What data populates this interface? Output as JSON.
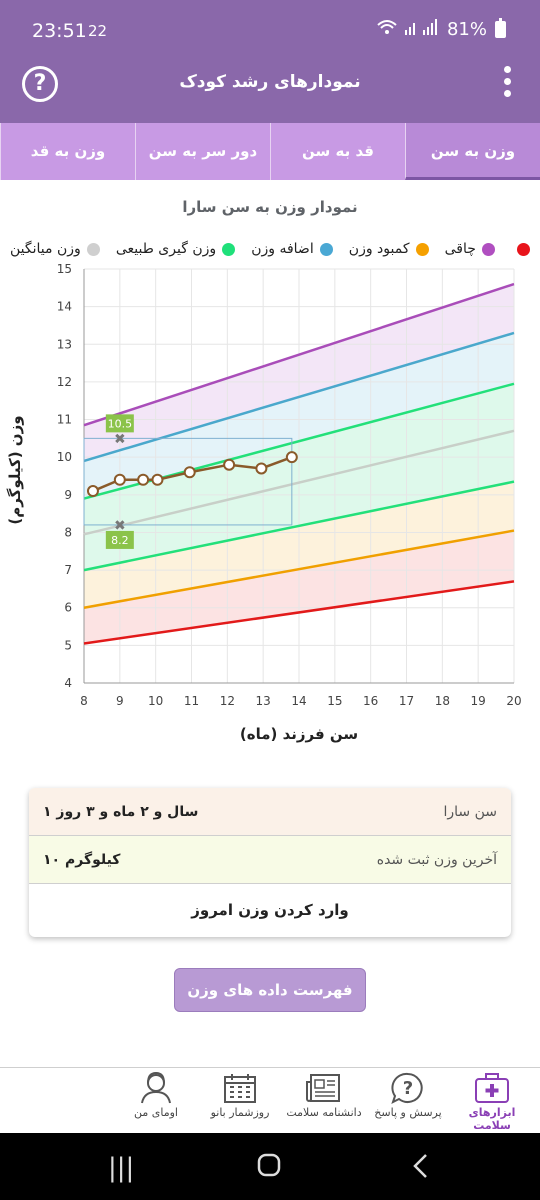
{
  "status_bar": {
    "time": "23:51",
    "notification": "22",
    "battery": "81%"
  },
  "app_bar": {
    "title": "نمودارهای رشد کودک",
    "help_icon": "question-circle-icon",
    "menu_icon": "vertical-dots-icon"
  },
  "tabs": [
    {
      "label": "وزن به سن",
      "active": true
    },
    {
      "label": "قد به سن",
      "active": false
    },
    {
      "label": "دور سر به سن",
      "active": false
    },
    {
      "label": "وزن به قد",
      "active": false
    }
  ],
  "chart_data": {
    "type": "line",
    "title": "نمودار وزن به سن سارا",
    "xlabel": "سن فرزند (ماه)",
    "ylabel": "وزن (کیلوگرم)",
    "xlim": [
      8,
      20
    ],
    "ylim": [
      4,
      15
    ],
    "x_ticks": [
      8,
      9,
      10,
      11,
      12,
      13,
      14,
      15,
      16,
      17,
      18,
      19,
      20
    ],
    "y_ticks": [
      4,
      5,
      6,
      7,
      8,
      9,
      10,
      11,
      12,
      13,
      14,
      15
    ],
    "grid": true,
    "legend_position": "top",
    "legend": [
      {
        "label": "چاقی",
        "color": "#b04fc0"
      },
      {
        "label": "کمبود وزن",
        "color": "#f5a000"
      },
      {
        "label": "اضافه وزن",
        "color": "#4aa8d4"
      },
      {
        "label": "وزن گیری طبیعی",
        "color": "#1fe07a"
      },
      {
        "label": "وزن میانگین",
        "color": "#cfcfcf"
      },
      {
        "label": "",
        "color": "#e8141b"
      }
    ],
    "reference_lines": [
      {
        "name": "red",
        "color": "#e21a1a",
        "values": [
          5.05,
          6.7
        ]
      },
      {
        "name": "orange",
        "color": "#f0a000",
        "values": [
          6.0,
          8.05
        ]
      },
      {
        "name": "green-low",
        "color": "#23e07a",
        "values": [
          7.0,
          9.35
        ]
      },
      {
        "name": "median",
        "color": "#c8cfc8",
        "values": [
          7.95,
          10.7
        ]
      },
      {
        "name": "green-high",
        "color": "#23e07a",
        "values": [
          8.9,
          11.95
        ]
      },
      {
        "name": "blue",
        "color": "#4aa8cc",
        "values": [
          9.9,
          13.3
        ]
      },
      {
        "name": "purple",
        "color": "#a94db9",
        "values": [
          10.85,
          14.6
        ]
      }
    ],
    "band_fills": [
      "#fcdede",
      "#fdf0d6",
      "#d8f8e8",
      "#d8f8e8",
      "#dff1f8",
      "#f1e2f6"
    ],
    "series": [
      {
        "name": "سارا",
        "color": "#8a5a2a",
        "x": [
          8.25,
          9.0,
          9.65,
          10.05,
          10.95,
          12.05,
          12.95,
          13.8
        ],
        "y": [
          9.1,
          9.4,
          9.4,
          9.4,
          9.6,
          9.8,
          9.7,
          10.0
        ]
      }
    ],
    "range_box": {
      "x": [
        8,
        13.8
      ],
      "y": [
        8.2,
        10.5
      ]
    },
    "markers": [
      {
        "x": 9,
        "y": 10.5,
        "label": "10.5"
      },
      {
        "x": 9,
        "y": 8.2,
        "label": "8.2"
      }
    ]
  },
  "info": {
    "age_label": "سن سارا",
    "age_value": "۱ سال و ۲ ماه و ۳ روز",
    "weight_label": "آخرین وزن ثبت شده",
    "weight_value": "۱۰ کیلوگرم",
    "enter_label": "وارد کردن وزن امروز"
  },
  "list_button": "فهرست داده های وزن سارا",
  "bottom_nav": [
    {
      "label": "ابزارهای سلامت",
      "icon": "medical-kit-icon",
      "active": true
    },
    {
      "label": "پرسش و پاسخ",
      "icon": "question-bubble-icon",
      "active": false
    },
    {
      "label": "دانشنامه سلامت",
      "icon": "newspaper-icon",
      "active": false
    },
    {
      "label": "روزشمار بانو",
      "icon": "calendar-icon",
      "active": false
    },
    {
      "label": "اومای من",
      "icon": "user-profile-icon",
      "active": false
    }
  ]
}
